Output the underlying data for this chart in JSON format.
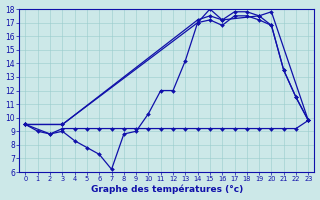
{
  "xlabel": "Graphe des températures (°c)",
  "xlim": [
    -0.5,
    23.5
  ],
  "ylim": [
    6,
    18
  ],
  "xticks": [
    0,
    1,
    2,
    3,
    4,
    5,
    6,
    7,
    8,
    9,
    10,
    11,
    12,
    13,
    14,
    15,
    16,
    17,
    18,
    19,
    20,
    21,
    22,
    23
  ],
  "yticks": [
    6,
    7,
    8,
    9,
    10,
    11,
    12,
    13,
    14,
    15,
    16,
    17,
    18
  ],
  "bg_color": "#cce8e8",
  "line_color": "#1010aa",
  "series": [
    {
      "x": [
        0,
        1,
        2,
        3,
        4,
        5,
        6,
        7,
        8,
        9,
        10,
        11,
        12,
        13,
        14,
        15,
        16,
        17,
        18,
        19,
        20,
        21,
        22,
        23
      ],
      "y": [
        9.5,
        9.0,
        8.8,
        9.2,
        9.2,
        9.2,
        9.2,
        9.2,
        9.2,
        9.2,
        9.2,
        9.2,
        9.2,
        9.2,
        9.2,
        9.2,
        9.2,
        9.2,
        9.2,
        9.2,
        9.2,
        9.2,
        9.2,
        9.8
      ]
    },
    {
      "x": [
        0,
        2,
        3,
        4,
        5,
        6,
        7,
        8,
        9,
        10,
        11,
        12,
        13,
        14,
        15,
        16,
        19,
        20,
        21,
        22,
        23
      ],
      "y": [
        9.5,
        8.8,
        9.0,
        8.3,
        7.8,
        7.3,
        6.2,
        8.8,
        9.0,
        10.3,
        12.0,
        12.0,
        14.2,
        17.0,
        18.0,
        17.2,
        17.5,
        16.8,
        13.5,
        11.5,
        9.8
      ]
    },
    {
      "x": [
        0,
        3,
        14,
        15,
        16,
        17,
        18,
        19,
        20,
        23
      ],
      "y": [
        9.5,
        9.5,
        17.2,
        17.5,
        17.2,
        17.8,
        17.8,
        17.5,
        17.8,
        9.8
      ]
    },
    {
      "x": [
        0,
        3,
        14,
        15,
        16,
        17,
        18,
        19,
        20,
        21,
        22,
        23
      ],
      "y": [
        9.5,
        9.5,
        17.0,
        17.2,
        16.8,
        17.5,
        17.5,
        17.2,
        16.8,
        13.5,
        11.5,
        9.8
      ]
    }
  ]
}
